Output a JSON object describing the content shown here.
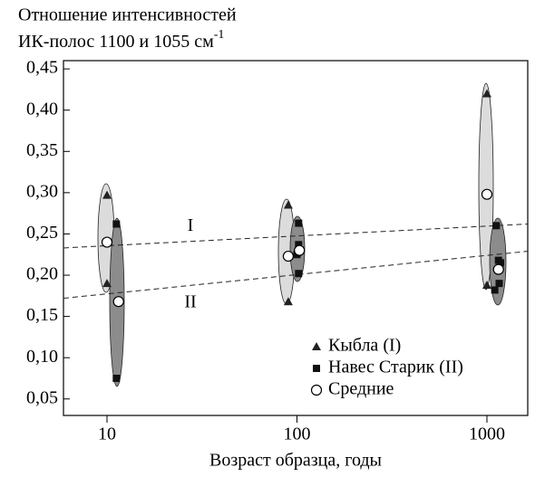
{
  "chart_data": {
    "type": "scatter",
    "y_label": [
      "Отношение интенсивностей",
      "ИК-полос 1100 и 1055 см"
    ],
    "y_label_superscript": "-1",
    "x_label": "Возраст образца, годы",
    "x_scale": "log",
    "xlim": [
      5.9,
      1640
    ],
    "xticks": [
      10,
      100,
      1000
    ],
    "ylim": [
      0.03,
      0.46
    ],
    "yticks": [
      {
        "value": 0.05,
        "label": "0,05"
      },
      {
        "value": 0.1,
        "label": "0,10"
      },
      {
        "value": 0.15,
        "label": "0,15"
      },
      {
        "value": 0.2,
        "label": "0,20"
      },
      {
        "value": 0.25,
        "label": "0,25"
      },
      {
        "value": 0.3,
        "label": "0,30"
      },
      {
        "value": 0.35,
        "label": "0,35"
      },
      {
        "value": 0.4,
        "label": "0,40"
      },
      {
        "value": 0.45,
        "label": "0,45"
      }
    ],
    "legend_position": "lower right",
    "series": [
      {
        "name": "Кыбла (I)",
        "marker": "triangle",
        "color": "#222222",
        "x": [
          10,
          10,
          90,
          90,
          1000,
          1000
        ],
        "values": [
          0.297,
          0.19,
          0.285,
          0.168,
          0.42,
          0.188
        ]
      },
      {
        "name": "Навес Старик (II)",
        "marker": "square",
        "color": "#111111",
        "x": [
          11.2,
          11.2,
          102,
          102,
          100,
          102,
          1120,
          1180,
          1150,
          1100,
          1160
        ],
        "values": [
          0.262,
          0.075,
          0.263,
          0.237,
          0.225,
          0.202,
          0.26,
          0.215,
          0.218,
          0.182,
          0.19
        ]
      },
      {
        "name": "Средние",
        "marker": "circle",
        "color": "#ffffff",
        "x": [
          10,
          11.5,
          90,
          103,
          1000,
          1150
        ],
        "values": [
          0.24,
          0.168,
          0.223,
          0.23,
          0.298,
          0.207
        ]
      }
    ],
    "trend_lines": [
      {
        "label": "I",
        "x": [
          5.9,
          1640
        ],
        "values": [
          0.233,
          0.262
        ]
      },
      {
        "label": "II",
        "x": [
          5.9,
          1640
        ],
        "values": [
          0.172,
          0.229
        ]
      }
    ]
  }
}
